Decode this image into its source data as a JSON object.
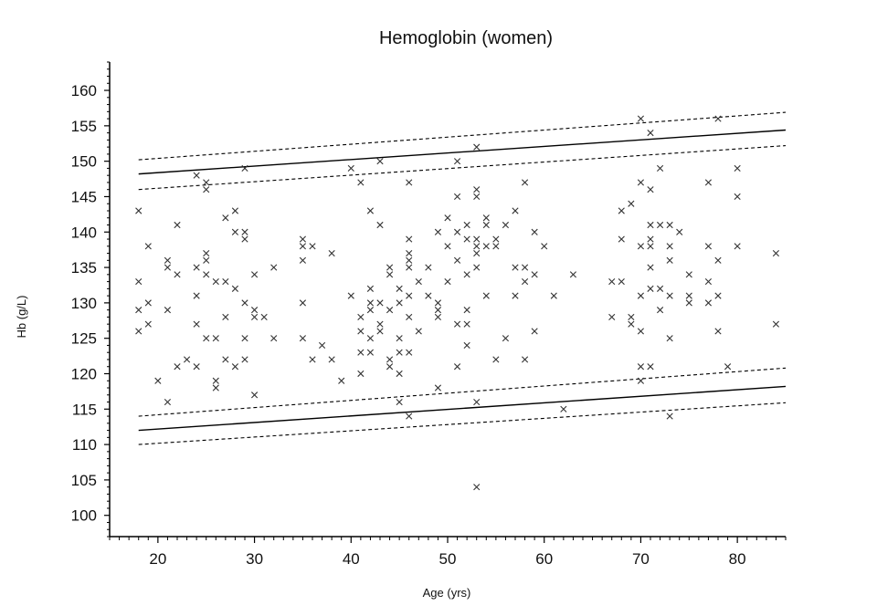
{
  "chart_data": {
    "type": "scatter",
    "title": "Hemoglobin (women)",
    "xlabel": "Age (yrs)",
    "ylabel": "Hb (g/L)",
    "xlim": [
      15,
      85
    ],
    "ylim": [
      97,
      164
    ],
    "xticks": [
      20,
      30,
      40,
      50,
      60,
      70,
      80
    ],
    "yticks": [
      100,
      105,
      110,
      115,
      120,
      125,
      130,
      135,
      140,
      145,
      150,
      155,
      160
    ],
    "marker": "x",
    "grid": false,
    "legend": "none",
    "points": [
      [
        18,
        143
      ],
      [
        18,
        133
      ],
      [
        18,
        129
      ],
      [
        18,
        126
      ],
      [
        19,
        138
      ],
      [
        19,
        130
      ],
      [
        19,
        127
      ],
      [
        20,
        119
      ],
      [
        21,
        136
      ],
      [
        21,
        135
      ],
      [
        21,
        129
      ],
      [
        21,
        116
      ],
      [
        22,
        141
      ],
      [
        22,
        134
      ],
      [
        22,
        121
      ],
      [
        23,
        122
      ],
      [
        24,
        148
      ],
      [
        24,
        135
      ],
      [
        24,
        131
      ],
      [
        24,
        127
      ],
      [
        24,
        121
      ],
      [
        25,
        147
      ],
      [
        25,
        146
      ],
      [
        25,
        137
      ],
      [
        25,
        136
      ],
      [
        25,
        134
      ],
      [
        25,
        125
      ],
      [
        26,
        133
      ],
      [
        26,
        125
      ],
      [
        26,
        119
      ],
      [
        26,
        118
      ],
      [
        27,
        142
      ],
      [
        27,
        133
      ],
      [
        27,
        128
      ],
      [
        27,
        122
      ],
      [
        28,
        143
      ],
      [
        28,
        140
      ],
      [
        28,
        132
      ],
      [
        28,
        121
      ],
      [
        29,
        149
      ],
      [
        29,
        140
      ],
      [
        29,
        139
      ],
      [
        29,
        130
      ],
      [
        29,
        125
      ],
      [
        29,
        122
      ],
      [
        30,
        134
      ],
      [
        30,
        129
      ],
      [
        30,
        128
      ],
      [
        30,
        117
      ],
      [
        31,
        128
      ],
      [
        32,
        135
      ],
      [
        32,
        125
      ],
      [
        35,
        139
      ],
      [
        35,
        138
      ],
      [
        35,
        136
      ],
      [
        35,
        130
      ],
      [
        35,
        125
      ],
      [
        36,
        138
      ],
      [
        36,
        122
      ],
      [
        37,
        124
      ],
      [
        38,
        137
      ],
      [
        38,
        122
      ],
      [
        39,
        119
      ],
      [
        40,
        149
      ],
      [
        40,
        131
      ],
      [
        41,
        147
      ],
      [
        41,
        128
      ],
      [
        41,
        126
      ],
      [
        41,
        123
      ],
      [
        41,
        120
      ],
      [
        42,
        143
      ],
      [
        42,
        132
      ],
      [
        42,
        130
      ],
      [
        42,
        129
      ],
      [
        42,
        125
      ],
      [
        42,
        123
      ],
      [
        43,
        150
      ],
      [
        43,
        141
      ],
      [
        43,
        130
      ],
      [
        43,
        127
      ],
      [
        43,
        126
      ],
      [
        44,
        135
      ],
      [
        44,
        134
      ],
      [
        44,
        129
      ],
      [
        44,
        122
      ],
      [
        44,
        121
      ],
      [
        45,
        132
      ],
      [
        45,
        130
      ],
      [
        45,
        125
      ],
      [
        45,
        123
      ],
      [
        45,
        120
      ],
      [
        45,
        116
      ],
      [
        46,
        147
      ],
      [
        46,
        139
      ],
      [
        46,
        137
      ],
      [
        46,
        136
      ],
      [
        46,
        135
      ],
      [
        46,
        131
      ],
      [
        46,
        128
      ],
      [
        46,
        123
      ],
      [
        46,
        114
      ],
      [
        47,
        133
      ],
      [
        47,
        126
      ],
      [
        48,
        135
      ],
      [
        48,
        131
      ],
      [
        49,
        140
      ],
      [
        49,
        130
      ],
      [
        49,
        129
      ],
      [
        49,
        128
      ],
      [
        49,
        118
      ],
      [
        50,
        142
      ],
      [
        50,
        138
      ],
      [
        50,
        133
      ],
      [
        51,
        150
      ],
      [
        51,
        145
      ],
      [
        51,
        140
      ],
      [
        51,
        136
      ],
      [
        51,
        127
      ],
      [
        51,
        121
      ],
      [
        52,
        141
      ],
      [
        52,
        139
      ],
      [
        52,
        134
      ],
      [
        52,
        129
      ],
      [
        52,
        127
      ],
      [
        52,
        124
      ],
      [
        53,
        152
      ],
      [
        53,
        146
      ],
      [
        53,
        145
      ],
      [
        53,
        139
      ],
      [
        53,
        138
      ],
      [
        53,
        137
      ],
      [
        53,
        135
      ],
      [
        53,
        116
      ],
      [
        53,
        104
      ],
      [
        54,
        142
      ],
      [
        54,
        141
      ],
      [
        54,
        138
      ],
      [
        54,
        131
      ],
      [
        55,
        139
      ],
      [
        55,
        138
      ],
      [
        55,
        122
      ],
      [
        56,
        141
      ],
      [
        56,
        125
      ],
      [
        57,
        143
      ],
      [
        57,
        135
      ],
      [
        57,
        131
      ],
      [
        58,
        147
      ],
      [
        58,
        135
      ],
      [
        58,
        133
      ],
      [
        58,
        122
      ],
      [
        59,
        140
      ],
      [
        59,
        134
      ],
      [
        59,
        126
      ],
      [
        60,
        138
      ],
      [
        61,
        131
      ],
      [
        62,
        115
      ],
      [
        63,
        134
      ],
      [
        67,
        133
      ],
      [
        67,
        128
      ],
      [
        68,
        143
      ],
      [
        68,
        139
      ],
      [
        68,
        133
      ],
      [
        69,
        144
      ],
      [
        69,
        128
      ],
      [
        69,
        127
      ],
      [
        70,
        156
      ],
      [
        70,
        147
      ],
      [
        70,
        138
      ],
      [
        70,
        131
      ],
      [
        70,
        126
      ],
      [
        70,
        121
      ],
      [
        70,
        119
      ],
      [
        71,
        154
      ],
      [
        71,
        146
      ],
      [
        71,
        141
      ],
      [
        71,
        139
      ],
      [
        71,
        138
      ],
      [
        71,
        135
      ],
      [
        71,
        132
      ],
      [
        71,
        121
      ],
      [
        72,
        149
      ],
      [
        72,
        141
      ],
      [
        72,
        132
      ],
      [
        72,
        129
      ],
      [
        73,
        141
      ],
      [
        73,
        138
      ],
      [
        73,
        136
      ],
      [
        73,
        131
      ],
      [
        73,
        125
      ],
      [
        73,
        114
      ],
      [
        74,
        140
      ],
      [
        75,
        134
      ],
      [
        75,
        131
      ],
      [
        75,
        130
      ],
      [
        77,
        147
      ],
      [
        77,
        138
      ],
      [
        77,
        133
      ],
      [
        77,
        130
      ],
      [
        78,
        156
      ],
      [
        78,
        136
      ],
      [
        78,
        131
      ],
      [
        78,
        126
      ],
      [
        79,
        121
      ],
      [
        80,
        149
      ],
      [
        80,
        145
      ],
      [
        80,
        138
      ],
      [
        84,
        137
      ],
      [
        84,
        127
      ]
    ],
    "curves": [
      {
        "style": "solid",
        "x": [
          18,
          85
        ],
        "y": [
          148.2,
          154.4
        ]
      },
      {
        "style": "dashed",
        "x": [
          18,
          85
        ],
        "y": [
          150.2,
          156.9
        ]
      },
      {
        "style": "dashed",
        "x": [
          18,
          85
        ],
        "y": [
          146.0,
          152.2
        ]
      },
      {
        "style": "solid",
        "x": [
          18,
          85
        ],
        "y": [
          112.0,
          118.2
        ]
      },
      {
        "style": "dashed",
        "x": [
          18,
          85
        ],
        "y": [
          114.0,
          120.8
        ]
      },
      {
        "style": "dashed",
        "x": [
          18,
          85
        ],
        "y": [
          110.0,
          115.9
        ]
      }
    ]
  }
}
